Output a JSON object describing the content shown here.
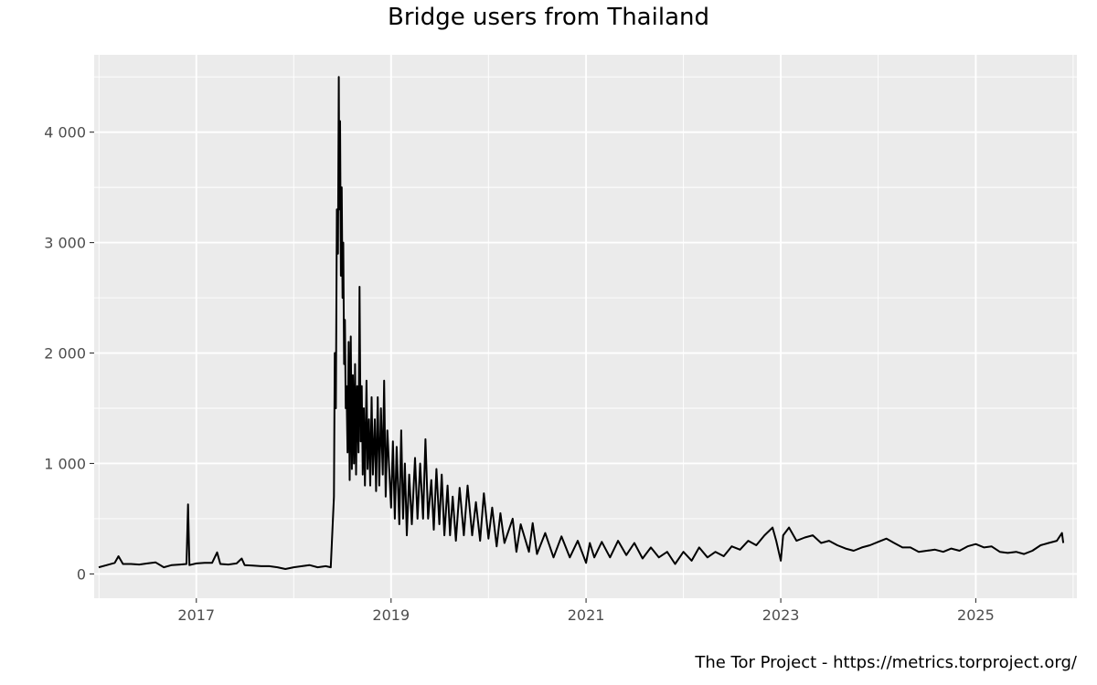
{
  "chart_data": {
    "type": "line",
    "title": "Bridge users from Thailand",
    "caption": "The Tor Project - https://metrics.torproject.org/",
    "xlabel": "",
    "ylabel": "",
    "x_range": [
      "2015-12-15",
      "2026-01-15"
    ],
    "ylim": [
      -220,
      4700
    ],
    "grid": true,
    "legend": "none",
    "x_ticks": [
      {
        "date": "2017-01-01",
        "label": "2017"
      },
      {
        "date": "2019-01-01",
        "label": "2019"
      },
      {
        "date": "2021-01-01",
        "label": "2021"
      },
      {
        "date": "2023-01-01",
        "label": "2023"
      },
      {
        "date": "2025-01-01",
        "label": "2025"
      }
    ],
    "y_ticks": [
      {
        "value": 0,
        "label": "0"
      },
      {
        "value": 1000,
        "label": "1 000"
      },
      {
        "value": 2000,
        "label": "2 000"
      },
      {
        "value": 3000,
        "label": "3 000"
      },
      {
        "value": 4000,
        "label": "4 000"
      }
    ],
    "series": [
      {
        "color": "#000000",
        "points": [
          [
            "2016-01-01",
            60
          ],
          [
            "2016-02-01",
            80
          ],
          [
            "2016-03-01",
            100
          ],
          [
            "2016-03-15",
            160
          ],
          [
            "2016-04-01",
            90
          ],
          [
            "2016-05-01",
            90
          ],
          [
            "2016-06-01",
            85
          ],
          [
            "2016-07-01",
            95
          ],
          [
            "2016-08-01",
            105
          ],
          [
            "2016-09-01",
            60
          ],
          [
            "2016-10-01",
            80
          ],
          [
            "2016-11-01",
            85
          ],
          [
            "2016-11-25",
            90
          ],
          [
            "2016-12-01",
            630
          ],
          [
            "2016-12-06",
            80
          ],
          [
            "2017-01-01",
            95
          ],
          [
            "2017-02-01",
            100
          ],
          [
            "2017-03-01",
            100
          ],
          [
            "2017-03-20",
            195
          ],
          [
            "2017-04-01",
            90
          ],
          [
            "2017-05-01",
            85
          ],
          [
            "2017-06-01",
            95
          ],
          [
            "2017-06-20",
            140
          ],
          [
            "2017-07-01",
            80
          ],
          [
            "2017-08-01",
            75
          ],
          [
            "2017-09-01",
            70
          ],
          [
            "2017-10-01",
            70
          ],
          [
            "2017-11-01",
            60
          ],
          [
            "2017-12-01",
            45
          ],
          [
            "2018-01-01",
            60
          ],
          [
            "2018-02-01",
            70
          ],
          [
            "2018-03-01",
            80
          ],
          [
            "2018-04-01",
            60
          ],
          [
            "2018-05-01",
            70
          ],
          [
            "2018-05-20",
            60
          ],
          [
            "2018-06-01",
            700
          ],
          [
            "2018-06-04",
            2000
          ],
          [
            "2018-06-08",
            1500
          ],
          [
            "2018-06-12",
            3300
          ],
          [
            "2018-06-16",
            2900
          ],
          [
            "2018-06-19",
            4500
          ],
          [
            "2018-06-21",
            3300
          ],
          [
            "2018-06-24",
            4100
          ],
          [
            "2018-06-27",
            2700
          ],
          [
            "2018-06-30",
            3500
          ],
          [
            "2018-07-03",
            2500
          ],
          [
            "2018-07-06",
            3000
          ],
          [
            "2018-07-09",
            1900
          ],
          [
            "2018-07-12",
            2300
          ],
          [
            "2018-07-15",
            1500
          ],
          [
            "2018-07-18",
            1700
          ],
          [
            "2018-07-22",
            1100
          ],
          [
            "2018-07-26",
            2100
          ],
          [
            "2018-07-30",
            850
          ],
          [
            "2018-08-03",
            2150
          ],
          [
            "2018-08-07",
            950
          ],
          [
            "2018-08-11",
            1800
          ],
          [
            "2018-08-15",
            1000
          ],
          [
            "2018-08-19",
            1900
          ],
          [
            "2018-08-23",
            900
          ],
          [
            "2018-08-27",
            1700
          ],
          [
            "2018-09-01",
            1100
          ],
          [
            "2018-09-05",
            2600
          ],
          [
            "2018-09-09",
            1200
          ],
          [
            "2018-09-13",
            1700
          ],
          [
            "2018-09-17",
            900
          ],
          [
            "2018-09-21",
            1500
          ],
          [
            "2018-09-25",
            800
          ],
          [
            "2018-10-01",
            1750
          ],
          [
            "2018-10-05",
            950
          ],
          [
            "2018-10-10",
            1400
          ],
          [
            "2018-10-15",
            800
          ],
          [
            "2018-10-20",
            1600
          ],
          [
            "2018-10-25",
            900
          ],
          [
            "2018-11-01",
            1400
          ],
          [
            "2018-11-06",
            750
          ],
          [
            "2018-11-12",
            1600
          ],
          [
            "2018-11-18",
            800
          ],
          [
            "2018-11-24",
            1500
          ],
          [
            "2018-12-01",
            900
          ],
          [
            "2018-12-06",
            1750
          ],
          [
            "2018-12-12",
            700
          ],
          [
            "2018-12-18",
            1300
          ],
          [
            "2019-01-01",
            600
          ],
          [
            "2019-01-08",
            1200
          ],
          [
            "2019-01-15",
            500
          ],
          [
            "2019-01-22",
            1150
          ],
          [
            "2019-02-01",
            450
          ],
          [
            "2019-02-08",
            1300
          ],
          [
            "2019-02-15",
            500
          ],
          [
            "2019-02-22",
            1000
          ],
          [
            "2019-03-01",
            350
          ],
          [
            "2019-03-10",
            900
          ],
          [
            "2019-03-20",
            450
          ],
          [
            "2019-04-01",
            1050
          ],
          [
            "2019-04-10",
            500
          ],
          [
            "2019-04-20",
            1000
          ],
          [
            "2019-05-01",
            500
          ],
          [
            "2019-05-10",
            1220
          ],
          [
            "2019-05-20",
            500
          ],
          [
            "2019-06-01",
            850
          ],
          [
            "2019-06-10",
            400
          ],
          [
            "2019-06-20",
            950
          ],
          [
            "2019-07-01",
            450
          ],
          [
            "2019-07-10",
            900
          ],
          [
            "2019-07-20",
            350
          ],
          [
            "2019-08-01",
            800
          ],
          [
            "2019-08-10",
            350
          ],
          [
            "2019-08-20",
            700
          ],
          [
            "2019-09-01",
            300
          ],
          [
            "2019-09-15",
            780
          ],
          [
            "2019-10-01",
            350
          ],
          [
            "2019-10-15",
            800
          ],
          [
            "2019-11-01",
            350
          ],
          [
            "2019-11-15",
            650
          ],
          [
            "2019-12-01",
            300
          ],
          [
            "2019-12-15",
            730
          ],
          [
            "2020-01-01",
            320
          ],
          [
            "2020-01-15",
            600
          ],
          [
            "2020-02-01",
            250
          ],
          [
            "2020-02-15",
            550
          ],
          [
            "2020-03-01",
            280
          ],
          [
            "2020-04-01",
            500
          ],
          [
            "2020-04-15",
            200
          ],
          [
            "2020-05-01",
            450
          ],
          [
            "2020-06-01",
            200
          ],
          [
            "2020-06-15",
            460
          ],
          [
            "2020-07-01",
            180
          ],
          [
            "2020-08-01",
            370
          ],
          [
            "2020-09-01",
            150
          ],
          [
            "2020-10-01",
            340
          ],
          [
            "2020-11-01",
            150
          ],
          [
            "2020-12-01",
            300
          ],
          [
            "2021-01-01",
            100
          ],
          [
            "2021-01-15",
            280
          ],
          [
            "2021-02-01",
            150
          ],
          [
            "2021-03-01",
            290
          ],
          [
            "2021-04-01",
            150
          ],
          [
            "2021-05-01",
            300
          ],
          [
            "2021-06-01",
            170
          ],
          [
            "2021-07-01",
            280
          ],
          [
            "2021-08-01",
            140
          ],
          [
            "2021-09-01",
            240
          ],
          [
            "2021-10-01",
            150
          ],
          [
            "2021-11-01",
            200
          ],
          [
            "2021-12-01",
            90
          ],
          [
            "2022-01-01",
            200
          ],
          [
            "2022-02-01",
            120
          ],
          [
            "2022-03-01",
            240
          ],
          [
            "2022-04-01",
            150
          ],
          [
            "2022-05-01",
            200
          ],
          [
            "2022-06-01",
            160
          ],
          [
            "2022-07-01",
            250
          ],
          [
            "2022-08-01",
            220
          ],
          [
            "2022-09-01",
            300
          ],
          [
            "2022-10-01",
            260
          ],
          [
            "2022-11-01",
            350
          ],
          [
            "2022-12-01",
            420
          ],
          [
            "2022-12-15",
            300
          ],
          [
            "2023-01-01",
            120
          ],
          [
            "2023-01-10",
            350
          ],
          [
            "2023-02-01",
            420
          ],
          [
            "2023-03-01",
            300
          ],
          [
            "2023-04-01",
            330
          ],
          [
            "2023-05-01",
            350
          ],
          [
            "2023-06-01",
            280
          ],
          [
            "2023-07-01",
            300
          ],
          [
            "2023-08-01",
            260
          ],
          [
            "2023-09-01",
            230
          ],
          [
            "2023-10-01",
            210
          ],
          [
            "2023-11-01",
            240
          ],
          [
            "2023-12-01",
            260
          ],
          [
            "2024-01-01",
            290
          ],
          [
            "2024-02-01",
            320
          ],
          [
            "2024-03-01",
            280
          ],
          [
            "2024-04-01",
            240
          ],
          [
            "2024-05-01",
            240
          ],
          [
            "2024-06-01",
            200
          ],
          [
            "2024-07-01",
            210
          ],
          [
            "2024-08-01",
            220
          ],
          [
            "2024-09-01",
            200
          ],
          [
            "2024-10-01",
            230
          ],
          [
            "2024-11-01",
            210
          ],
          [
            "2024-12-01",
            250
          ],
          [
            "2025-01-01",
            270
          ],
          [
            "2025-02-01",
            240
          ],
          [
            "2025-03-01",
            250
          ],
          [
            "2025-04-01",
            200
          ],
          [
            "2025-05-01",
            190
          ],
          [
            "2025-06-01",
            200
          ],
          [
            "2025-07-01",
            180
          ],
          [
            "2025-08-01",
            210
          ],
          [
            "2025-09-01",
            260
          ],
          [
            "2025-10-01",
            280
          ],
          [
            "2025-11-01",
            300
          ],
          [
            "2025-11-20",
            370
          ],
          [
            "2025-11-25",
            280
          ]
        ]
      }
    ]
  }
}
